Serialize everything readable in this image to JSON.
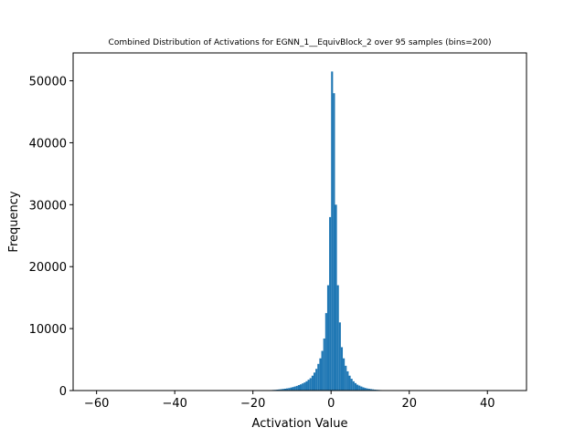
{
  "chart_data": {
    "type": "bar",
    "title": "Combined Distribution of Activations for EGNN_1__EquivBlock_2 over 95 samples  (bins=200)",
    "xlabel": "Activation Value",
    "ylabel": "Frequency",
    "xlim": [
      -66,
      50
    ],
    "ylim": [
      0,
      54500
    ],
    "xticks": [
      -60,
      -40,
      -20,
      0,
      20,
      40
    ],
    "yticks": [
      0,
      10000,
      20000,
      30000,
      40000,
      50000
    ],
    "xtick_labels": [
      "−60",
      "−40",
      "−20",
      "0",
      "20",
      "40"
    ],
    "ytick_labels": [
      "0",
      "10000",
      "20000",
      "30000",
      "40000",
      "50000"
    ],
    "bar_color": "#1f77b4",
    "bin_width": 0.5,
    "bins": [
      [
        -17.5,
        20
      ],
      [
        -17.0,
        30
      ],
      [
        -16.5,
        40
      ],
      [
        -16.0,
        60
      ],
      [
        -15.5,
        80
      ],
      [
        -15.0,
        100
      ],
      [
        -14.5,
        120
      ],
      [
        -14.0,
        150
      ],
      [
        -13.5,
        180
      ],
      [
        -13.0,
        220
      ],
      [
        -12.5,
        260
      ],
      [
        -12.0,
        300
      ],
      [
        -11.5,
        350
      ],
      [
        -11.0,
        400
      ],
      [
        -10.5,
        480
      ],
      [
        -10.0,
        560
      ],
      [
        -9.5,
        650
      ],
      [
        -9.0,
        750
      ],
      [
        -8.5,
        880
      ],
      [
        -8.0,
        1000
      ],
      [
        -7.5,
        1150
      ],
      [
        -7.0,
        1300
      ],
      [
        -6.5,
        1500
      ],
      [
        -6.0,
        1750
      ],
      [
        -5.5,
        2000
      ],
      [
        -5.0,
        2400
      ],
      [
        -4.5,
        2900
      ],
      [
        -4.0,
        3500
      ],
      [
        -3.5,
        4300
      ],
      [
        -3.0,
        5200
      ],
      [
        -2.5,
        6400
      ],
      [
        -2.0,
        8400
      ],
      [
        -1.5,
        12500
      ],
      [
        -1.0,
        17000
      ],
      [
        -0.5,
        28000
      ],
      [
        0.0,
        51500
      ],
      [
        0.5,
        48000
      ],
      [
        1.0,
        30000
      ],
      [
        1.5,
        17000
      ],
      [
        2.0,
        11000
      ],
      [
        2.5,
        7000
      ],
      [
        3.0,
        5200
      ],
      [
        3.5,
        4000
      ],
      [
        4.0,
        3100
      ],
      [
        4.5,
        2400
      ],
      [
        5.0,
        1900
      ],
      [
        5.5,
        1500
      ],
      [
        6.0,
        1200
      ],
      [
        6.5,
        950
      ],
      [
        7.0,
        800
      ],
      [
        7.5,
        650
      ],
      [
        8.0,
        520
      ],
      [
        8.5,
        420
      ],
      [
        9.0,
        340
      ],
      [
        9.5,
        280
      ],
      [
        10.0,
        230
      ],
      [
        10.5,
        190
      ],
      [
        11.0,
        150
      ],
      [
        11.5,
        120
      ],
      [
        12.0,
        100
      ],
      [
        12.5,
        80
      ],
      [
        13.0,
        60
      ],
      [
        13.5,
        50
      ],
      [
        14.0,
        40
      ],
      [
        14.5,
        30
      ],
      [
        15.0,
        25
      ],
      [
        15.5,
        20
      ],
      [
        16.0,
        15
      ],
      [
        16.5,
        12
      ],
      [
        17.0,
        10
      ]
    ]
  }
}
